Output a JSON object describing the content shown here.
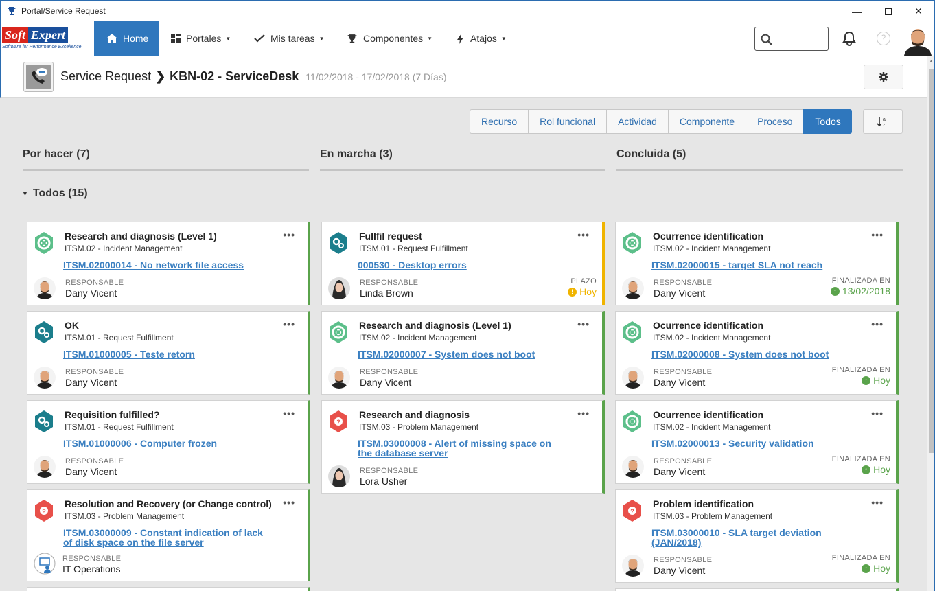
{
  "window": {
    "title": "Portal/Service Request"
  },
  "logo": {
    "soft": "Soft",
    "expert": "Expert",
    "tagline": "Software for Performance Excellence"
  },
  "nav": {
    "items": [
      {
        "label": "Home",
        "icon": "home-icon",
        "active": true
      },
      {
        "label": "Portales",
        "icon": "grid-icon"
      },
      {
        "label": "Mis tareas",
        "icon": "check-icon"
      },
      {
        "label": "Componentes",
        "icon": "trophy-icon"
      },
      {
        "label": "Atajos",
        "icon": "bolt-icon"
      }
    ],
    "search_placeholder": ""
  },
  "header": {
    "parent": "Service Request",
    "current": "KBN-02 - ServiceDesk",
    "dates": "11/02/2018 - 17/02/2018 (7 Días)"
  },
  "filters": [
    "Recurso",
    "Rol funcional",
    "Actividad",
    "Componente",
    "Proceso",
    "Todos"
  ],
  "columns": [
    "Por hacer (7)",
    "En marcha (3)",
    "Concluida (5)"
  ],
  "group": {
    "label": "Todos (15)"
  },
  "labels": {
    "responsable": "RESPONSABLE",
    "plazo": "PLAZO",
    "finalizada": "FINALIZADA EN"
  },
  "colors": {
    "accent": "#2f77bd",
    "green": "#5aa34b",
    "warning": "#f0b400",
    "link": "#3a7fc1"
  },
  "cards": [
    {
      "col": 0,
      "title": "Research and diagnosis (Level 1)",
      "sub": "ITSM.02 - Incident Management",
      "link": "ITSM.02000014 - No network file access",
      "resp": "Dany Vicent",
      "icon": "lifebuoy-icon",
      "status": "",
      "status_label": ""
    },
    {
      "col": 0,
      "title": "OK",
      "sub": "ITSM.01 - Request Fulfillment",
      "link": "ITSM.01000005 - Teste retorn",
      "resp": "Dany Vicent",
      "icon": "gears-icon",
      "status": "",
      "status_label": ""
    },
    {
      "col": 0,
      "title": "Requisition fulfilled?",
      "sub": "ITSM.01 - Request Fulfillment",
      "link": "ITSM.01000006 - Computer frozen",
      "resp": "Dany Vicent",
      "icon": "gears-icon",
      "status": "",
      "status_label": ""
    },
    {
      "col": 0,
      "title": "Resolution and Recovery (or Change control)",
      "sub": "ITSM.03 - Problem Management",
      "link": "ITSM.03000009 - Constant indication of lack of disk space on the file server",
      "resp": "IT Operations",
      "icon": "question-icon",
      "status": "",
      "status_label": ""
    },
    {
      "col": 1,
      "title": "Fullfil request",
      "sub": "ITSM.01 - Request Fulfillment",
      "link": "000530 - Desktop errors",
      "resp": "Linda Brown",
      "icon": "gears-icon",
      "status": "Hoy",
      "status_label": "PLAZO"
    },
    {
      "col": 1,
      "title": "Research and diagnosis (Level 1)",
      "sub": "ITSM.02 - Incident Management",
      "link": "ITSM.02000007 - System does not boot",
      "resp": "Dany Vicent",
      "icon": "lifebuoy-icon",
      "status": "",
      "status_label": ""
    },
    {
      "col": 1,
      "title": "Research and diagnosis",
      "sub": "ITSM.03 - Problem Management",
      "link": "ITSM.03000008 - Alert of missing space on the database server",
      "resp": "Lora Usher",
      "icon": "question-icon",
      "status": "",
      "status_label": ""
    },
    {
      "col": 2,
      "title": "Ocurrence identification",
      "sub": "ITSM.02 - Incident Management",
      "link": "ITSM.02000015 - target SLA not reach",
      "resp": "Dany Vicent",
      "icon": "lifebuoy-icon",
      "status": "13/02/2018",
      "status_label": "FINALIZADA EN"
    },
    {
      "col": 2,
      "title": "Ocurrence identification",
      "sub": "ITSM.02 - Incident Management",
      "link": "ITSM.02000008 - System does not boot",
      "resp": "Dany Vicent",
      "icon": "lifebuoy-icon",
      "status": "Hoy",
      "status_label": "FINALIZADA EN"
    },
    {
      "col": 2,
      "title": "Ocurrence identification",
      "sub": "ITSM.02 - Incident Management",
      "link": "ITSM.02000013 - Security validation",
      "resp": "Dany Vicent",
      "icon": "lifebuoy-icon",
      "status": "Hoy",
      "status_label": "FINALIZADA EN"
    },
    {
      "col": 2,
      "title": "Problem identification",
      "sub": "ITSM.03 - Problem Management",
      "link": "ITSM.03000010 - SLA target deviation (JAN/2018)",
      "resp": "Dany Vicent",
      "icon": "question-icon",
      "status": "Hoy",
      "status_label": "FINALIZADA EN"
    }
  ]
}
